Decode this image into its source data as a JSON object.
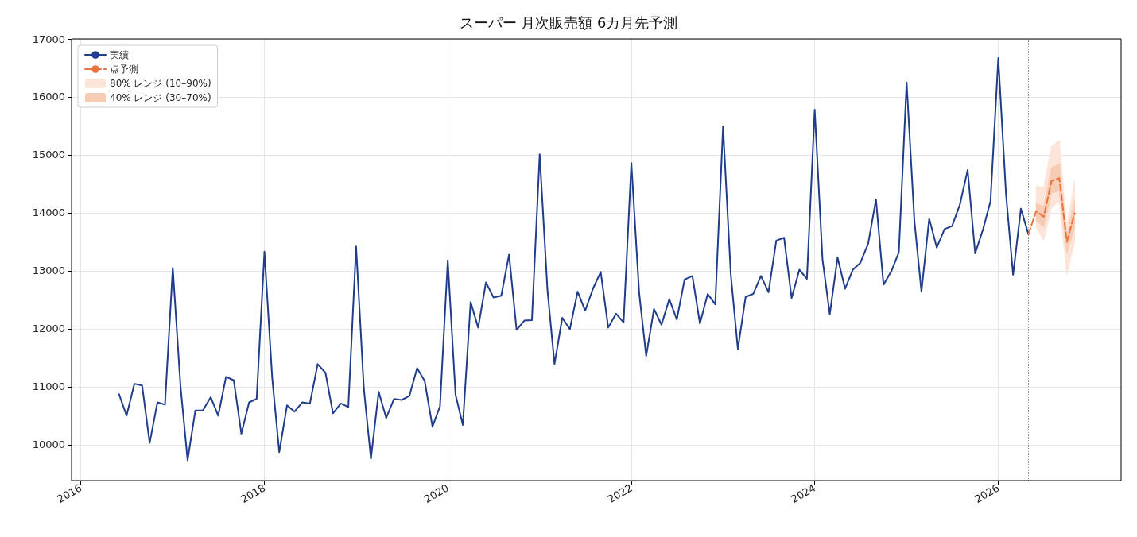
{
  "chart_data": {
    "type": "line",
    "title": "スーパー 月次販売額 6カ月先予測",
    "legend": "top left",
    "grid": true,
    "marker": "none",
    "xlim": [
      "2015-11-25",
      "2027-05-05"
    ],
    "xticks": [
      "2016",
      "2018",
      "2020",
      "2022",
      "2024",
      "2026"
    ],
    "ylim": [
      9380,
      17000
    ],
    "yticks": [
      10000,
      11000,
      12000,
      13000,
      14000,
      15000,
      16000,
      17000
    ],
    "x": [
      "2016-06",
      "2016-07",
      "2016-08",
      "2016-09",
      "2016-10",
      "2016-11",
      "2016-12",
      "2017-01",
      "2017-02",
      "2017-03",
      "2017-04",
      "2017-05",
      "2017-06",
      "2017-07",
      "2017-08",
      "2017-09",
      "2017-10",
      "2017-11",
      "2017-12",
      "2018-01",
      "2018-02",
      "2018-03",
      "2018-04",
      "2018-05",
      "2018-06",
      "2018-07",
      "2018-08",
      "2018-09",
      "2018-10",
      "2018-11",
      "2018-12",
      "2019-01",
      "2019-02",
      "2019-03",
      "2019-04",
      "2019-05",
      "2019-06",
      "2019-07",
      "2019-08",
      "2019-09",
      "2019-10",
      "2019-11",
      "2019-12",
      "2020-01",
      "2020-02",
      "2020-03",
      "2020-04",
      "2020-05",
      "2020-06",
      "2020-07",
      "2020-08",
      "2020-09",
      "2020-10",
      "2020-11",
      "2020-12",
      "2021-01",
      "2021-02",
      "2021-03",
      "2021-04",
      "2021-05",
      "2021-06",
      "2021-07",
      "2021-08",
      "2021-09",
      "2021-10",
      "2021-11",
      "2021-12",
      "2022-01",
      "2022-02",
      "2022-03",
      "2022-04",
      "2022-05",
      "2022-06",
      "2022-07",
      "2022-08",
      "2022-09",
      "2022-10",
      "2022-11",
      "2022-12",
      "2023-01",
      "2023-02",
      "2023-03",
      "2023-04",
      "2023-05",
      "2023-06",
      "2023-07",
      "2023-08",
      "2023-09",
      "2023-10",
      "2023-11",
      "2023-12",
      "2024-01",
      "2024-02",
      "2024-03",
      "2024-04",
      "2024-05",
      "2024-06",
      "2024-07",
      "2024-08",
      "2024-09",
      "2024-10",
      "2024-11",
      "2024-12",
      "2025-01",
      "2025-02",
      "2025-03",
      "2025-04",
      "2025-05",
      "2025-06",
      "2025-07",
      "2025-08",
      "2025-09",
      "2025-10",
      "2025-11",
      "2025-12",
      "2026-01",
      "2026-02",
      "2026-03",
      "2026-04",
      "2026-05"
    ],
    "series": [
      {
        "name": "実績",
        "type": "line",
        "color": "#203d8c",
        "values": [
          10870,
          10500,
          11050,
          11020,
          10030,
          10730,
          10690,
          13050,
          11000,
          9730,
          10590,
          10590,
          10820,
          10500,
          11170,
          11110,
          10190,
          10730,
          10790,
          13330,
          11150,
          9870,
          10680,
          10570,
          10730,
          10710,
          11390,
          11240,
          10540,
          10710,
          10650,
          13420,
          10960,
          9760,
          10910,
          10460,
          10790,
          10770,
          10840,
          11320,
          11100,
          10310,
          10660,
          13180,
          10860,
          10340,
          12460,
          12020,
          12800,
          12540,
          12570,
          13280,
          11980,
          12140,
          12150,
          15010,
          12660,
          11390,
          12190,
          11990,
          12640,
          12310,
          12690,
          12980,
          12020,
          12260,
          12110,
          14860,
          12620,
          11530,
          12340,
          12070,
          12510,
          12160,
          12850,
          12910,
          12090,
          12600,
          12420,
          15490,
          12930,
          11650,
          12550,
          12600,
          12910,
          12630,
          13520,
          13570,
          12530,
          13020,
          12860,
          15780,
          13200,
          12250,
          13230,
          12690,
          13020,
          13140,
          13470,
          14230,
          12760,
          12990,
          13320,
          16250,
          13860,
          12640,
          13900,
          13400,
          13720,
          13770,
          14140,
          14740,
          13300,
          13710,
          14200,
          16670,
          14310,
          12930,
          14070,
          13630
        ]
      },
      {
        "name": "点予測",
        "type": "line",
        "line_style": "dashed",
        "color": "#e8743b",
        "x": [
          "2026-05",
          "2026-06",
          "2026-07",
          "2026-08",
          "2026-09",
          "2026-10",
          "2026-11"
        ],
        "values": [
          13630,
          14030,
          13930,
          14550,
          14600,
          13500,
          13990
        ]
      },
      {
        "name": "80% レンジ (10–90%)",
        "color": "#fce4d8",
        "x": [
          "2026-06",
          "2026-07",
          "2026-08",
          "2026-09",
          "2026-10",
          "2026-11"
        ],
        "values": [
          null,
          null,
          null,
          null,
          null,
          null
        ],
        "lower": [
          13750,
          13530,
          14090,
          14190,
          12940,
          13500
        ],
        "upper": [
          14460,
          14440,
          15140,
          15250,
          13750,
          14550
        ]
      },
      {
        "name": "40% レンジ (30–70%)",
        "color": "#f8cbb4",
        "x": [
          "2026-06",
          "2026-07",
          "2026-08",
          "2026-09",
          "2026-10",
          "2026-11"
        ],
        "values": [
          null,
          null,
          null,
          null,
          null,
          null
        ],
        "lower": [
          13870,
          13750,
          14340,
          14380,
          13310,
          13750
        ],
        "upper": [
          14160,
          14110,
          14780,
          14840,
          13600,
          14210
        ]
      }
    ],
    "ref_lines": [
      {
        "axis": "x",
        "value": "2026-05",
        "line_style": "dotted",
        "color": "#999999"
      }
    ]
  }
}
